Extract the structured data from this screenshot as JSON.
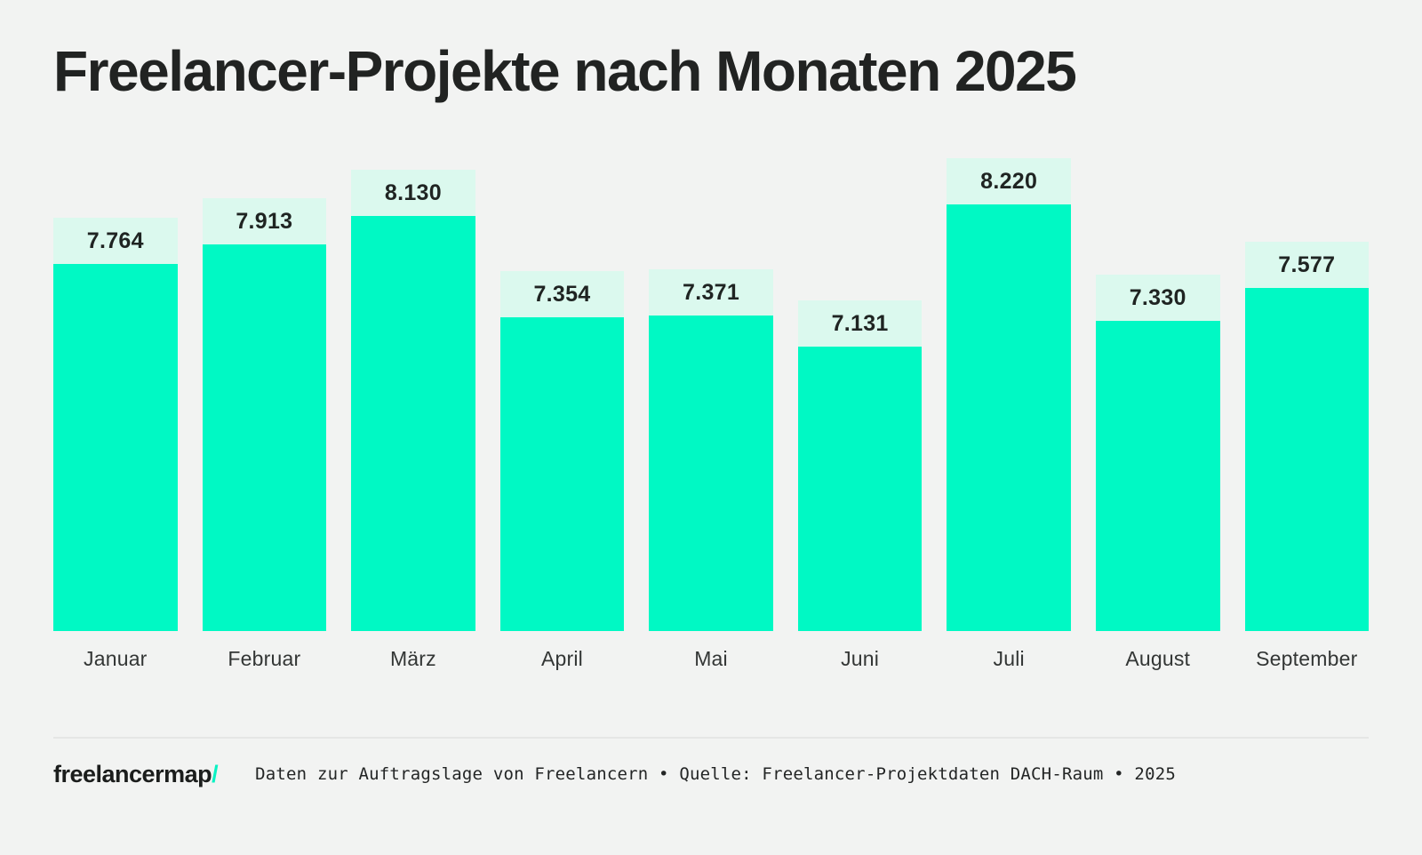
{
  "title": "Freelancer-Projekte nach Monaten 2025",
  "chart_data": {
    "type": "bar",
    "title": "Freelancer-Projekte nach Monaten 2025",
    "categories": [
      "Januar",
      "Februar",
      "März",
      "April",
      "Mai",
      "Juni",
      "Juli",
      "August",
      "September"
    ],
    "values": [
      7764,
      7913,
      8130,
      7354,
      7371,
      7131,
      8220,
      7330,
      7577
    ],
    "value_labels": [
      "7.764",
      "7.913",
      "8.130",
      "7.354",
      "7.371",
      "7.131",
      "8.220",
      "7.330",
      "7.577"
    ],
    "xlabel": "",
    "ylabel": "",
    "grid": false,
    "legend": false,
    "value_labels_position": "above-bar-in-box",
    "colors": {
      "bar": "#00F9C4",
      "value_label_background": "#DBF9EE",
      "value_label_text": "#1F2422",
      "page_background": "#F2F3F2",
      "title_text": "#212322",
      "month_text": "#333635"
    }
  },
  "footer": {
    "logo_text": "freelancermap",
    "logo_slash": "/",
    "source_text": "Daten zur Auftragslage von Freelancern • Quelle: Freelancer-Projektdaten DACH-Raum • 2025"
  }
}
